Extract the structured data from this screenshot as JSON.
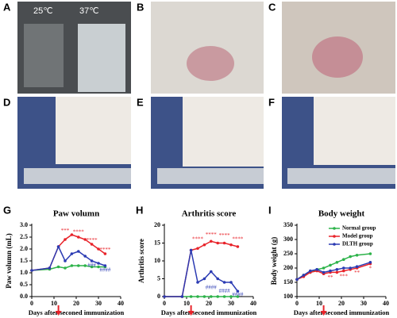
{
  "panels": [
    "A",
    "B",
    "C",
    "D",
    "E",
    "F"
  ],
  "photo_labels": [
    "25℃",
    "37℃"
  ],
  "chart_data": [
    {
      "type": "line",
      "letter": "G",
      "title": "Paw volumn",
      "xlabel": "Days after seconed immunization",
      "ylabel": "Paw volumn (mL)",
      "x": [
        0,
        8,
        12,
        15,
        18,
        21,
        24,
        27,
        30,
        33
      ],
      "series": [
        {
          "name": "Normal group",
          "color": "#2db34a",
          "values": [
            1.1,
            1.15,
            1.25,
            1.2,
            1.3,
            1.3,
            1.3,
            1.25,
            1.25,
            1.25
          ]
        },
        {
          "name": "Model group",
          "color": "#e8232a",
          "values": [
            1.1,
            1.2,
            2.1,
            2.4,
            2.6,
            2.5,
            2.4,
            2.2,
            2.0,
            1.8
          ]
        },
        {
          "name": "DLTH group",
          "color": "#2b3bb3",
          "values": [
            1.1,
            1.2,
            2.1,
            1.5,
            1.8,
            1.9,
            1.7,
            1.5,
            1.4,
            1.3
          ]
        }
      ],
      "annotations": [
        {
          "text": "***",
          "x": 15,
          "y": 2.75,
          "color": "#e8232a"
        },
        {
          "text": "****",
          "x": 21,
          "y": 2.7,
          "color": "#e8232a"
        },
        {
          "text": "****",
          "x": 27,
          "y": 2.35,
          "color": "#e8232a"
        },
        {
          "text": "****",
          "x": 33,
          "y": 1.95,
          "color": "#e8232a"
        },
        {
          "text": "###",
          "x": 27,
          "y": 1.3,
          "color": "#2b3bb3"
        },
        {
          "text": "####",
          "x": 33,
          "y": 1.1,
          "color": "#2b3bb3"
        }
      ],
      "arrow_x": 12,
      "xlim": [
        0,
        40
      ],
      "xticks": [
        0,
        10,
        20,
        30,
        40
      ],
      "ylim": [
        0,
        3
      ],
      "yticks": [
        {
          "value": 0,
          "label": "0.0"
        },
        {
          "value": 0.5,
          "label": "0.5"
        },
        {
          "value": 1,
          "label": "1.0"
        },
        {
          "value": 1.5,
          "label": "1.5"
        },
        {
          "value": 2,
          "label": "2.0"
        },
        {
          "value": 2.5,
          "label": "2.5"
        },
        {
          "value": 3,
          "label": "3.0"
        }
      ]
    },
    {
      "type": "line",
      "letter": "H",
      "title": "Arthritis score",
      "xlabel": "Days after seconed immunization",
      "ylabel": "Arthritis score",
      "x": [
        0,
        8,
        12,
        15,
        18,
        21,
        24,
        27,
        30,
        33
      ],
      "series": [
        {
          "name": "Normal group",
          "color": "#2db34a",
          "values": [
            0,
            0,
            0,
            0,
            0,
            0,
            0,
            0,
            0,
            0
          ]
        },
        {
          "name": "Model group",
          "color": "#e8232a",
          "values": [
            0,
            0,
            13,
            13.5,
            14.5,
            15.5,
            15,
            15,
            14.5,
            14
          ]
        },
        {
          "name": "DLTH group",
          "color": "#2b3bb3",
          "values": [
            0,
            0,
            13,
            4,
            5,
            7,
            5,
            4,
            4,
            1.5
          ]
        }
      ],
      "annotations": [
        {
          "text": "****",
          "x": 15,
          "y": 16,
          "color": "#e8232a"
        },
        {
          "text": "****",
          "x": 21,
          "y": 17.2,
          "color": "#e8232a"
        },
        {
          "text": "****",
          "x": 27,
          "y": 17,
          "color": "#e8232a"
        },
        {
          "text": "****",
          "x": 33,
          "y": 16,
          "color": "#e8232a"
        },
        {
          "text": "####",
          "x": 21,
          "y": 2.5,
          "color": "#2b3bb3"
        },
        {
          "text": "####",
          "x": 27,
          "y": 1.5,
          "color": "#2b3bb3"
        },
        {
          "text": "####",
          "x": 33,
          "y": 0.5,
          "color": "#2b3bb3"
        }
      ],
      "arrow_x": 12,
      "xlim": [
        0,
        40
      ],
      "xticks": [
        0,
        10,
        20,
        30,
        40
      ],
      "ylim": [
        0,
        20
      ],
      "yticks": [
        0,
        5,
        10,
        15,
        20
      ]
    },
    {
      "type": "line",
      "letter": "I",
      "title": "Body weight",
      "xlabel": "Days after seconed immunization",
      "ylabel": "Body weight (g)",
      "x": [
        0,
        3,
        6,
        9,
        12,
        15,
        18,
        21,
        24,
        27,
        33
      ],
      "series": [
        {
          "name": "Normal group",
          "color": "#2db34a",
          "values": [
            160,
            175,
            185,
            195,
            200,
            210,
            220,
            230,
            240,
            245,
            250
          ]
        },
        {
          "name": "Model group",
          "color": "#e8232a",
          "values": [
            160,
            170,
            185,
            190,
            180,
            185,
            185,
            190,
            195,
            200,
            215
          ]
        },
        {
          "name": "DLTH group",
          "color": "#2b3bb3",
          "values": [
            160,
            175,
            190,
            195,
            185,
            190,
            195,
            200,
            200,
            205,
            220
          ]
        }
      ],
      "annotations": [
        {
          "text": "**",
          "x": 15,
          "y": 165,
          "color": "#e8232a"
        },
        {
          "text": "***",
          "x": 21,
          "y": 170,
          "color": "#e8232a"
        },
        {
          "text": "**",
          "x": 27,
          "y": 182,
          "color": "#e8232a"
        },
        {
          "text": "*",
          "x": 33,
          "y": 198,
          "color": "#e8232a"
        }
      ],
      "arrow_x": 12,
      "legend": "upper center",
      "xlim": [
        0,
        40
      ],
      "xticks": [
        0,
        10,
        20,
        30,
        40
      ],
      "ylim": [
        100,
        350
      ],
      "yticks": [
        100,
        150,
        200,
        250,
        300,
        350
      ]
    }
  ]
}
